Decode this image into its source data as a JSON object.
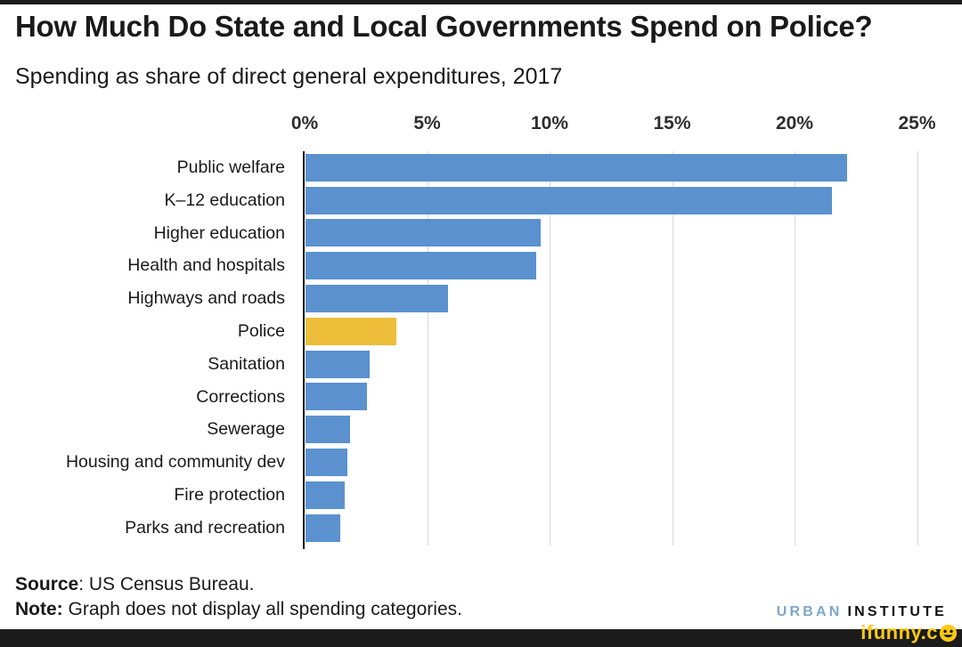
{
  "page": {
    "title": "How Much Do State and Local Governments Spend on Police?",
    "subtitle": "Spending as share of direct general expenditures, 2017"
  },
  "chart_data": {
    "type": "bar",
    "orientation": "horizontal",
    "title": "How Much Do State and Local Governments Spend on Police?",
    "subtitle": "Spending as share of direct general expenditures, 2017",
    "xlabel": "",
    "ylabel": "",
    "categories": [
      "Public welfare",
      "K–12 education",
      "Higher education",
      "Health and hospitals",
      "Highways and roads",
      "Police",
      "Sanitation",
      "Corrections",
      "Sewerage",
      "Housing and community dev",
      "Fire protection",
      "Parks and recreation"
    ],
    "values": [
      22.1,
      21.5,
      9.6,
      9.4,
      5.8,
      3.7,
      2.6,
      2.5,
      1.8,
      1.7,
      1.6,
      1.4
    ],
    "unit": "%",
    "highlight_category": "Police",
    "bar_color": "#5a91ce",
    "highlight_color": "#ecbe3a",
    "x_ticks": [
      {
        "value": 0,
        "label": "0%"
      },
      {
        "value": 5,
        "label": "5%"
      },
      {
        "value": 10,
        "label": "10%"
      },
      {
        "value": 15,
        "label": "15%"
      },
      {
        "value": 20,
        "label": "20%"
      },
      {
        "value": 25,
        "label": "25%"
      }
    ],
    "xlim": [
      0,
      25.5
    ],
    "grid": true,
    "gridline_color": "#d9d9d9",
    "axis_color": "#141414",
    "legend": null
  },
  "footer": {
    "source_label": "Source",
    "source_rest": ": US Census Bureau.",
    "note_label": "Note:",
    "note_rest": " Graph does not display all spending categories."
  },
  "branding": {
    "logo_word1": "URBAN",
    "logo_word2": "INSTITUTE",
    "logo_word1_color": "#7da7cb",
    "logo_word2_color": "#111111",
    "watermark_text": "ifunny.c",
    "watermark_color": "#fdc913"
  }
}
